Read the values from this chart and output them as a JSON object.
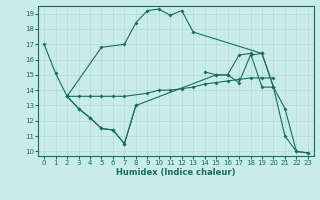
{
  "xlabel": "Humidex (Indice chaleur)",
  "bg_color": "#c8ecea",
  "grid_color": "#b8dbd8",
  "line_color": "#1a6b60",
  "xlim": [
    -0.5,
    23.5
  ],
  "ylim": [
    9.7,
    19.5
  ],
  "yticks": [
    10,
    11,
    12,
    13,
    14,
    15,
    16,
    17,
    18,
    19
  ],
  "xticks": [
    0,
    1,
    2,
    3,
    4,
    5,
    6,
    7,
    8,
    9,
    10,
    11,
    12,
    13,
    14,
    15,
    16,
    17,
    18,
    19,
    20,
    21,
    22,
    23
  ],
  "lines": [
    {
      "x": [
        2,
        5,
        7,
        8,
        9,
        10,
        11,
        12,
        13,
        19,
        20
      ],
      "y": [
        13.6,
        16.8,
        17.0,
        18.4,
        19.2,
        19.3,
        18.9,
        19.2,
        17.8,
        16.4,
        14.2
      ]
    },
    {
      "x": [
        2,
        3,
        4,
        5,
        6,
        7,
        9,
        10,
        11,
        12,
        13,
        14,
        15,
        16,
        17,
        18,
        19,
        20
      ],
      "y": [
        13.6,
        13.6,
        13.6,
        13.6,
        13.6,
        13.6,
        13.8,
        14.0,
        14.0,
        14.1,
        14.2,
        14.4,
        14.5,
        14.6,
        14.7,
        14.8,
        14.8,
        14.8
      ]
    },
    {
      "x": [
        0,
        1,
        2,
        3,
        4,
        5,
        6,
        7,
        8
      ],
      "y": [
        17.0,
        15.1,
        13.6,
        12.8,
        12.2,
        11.5,
        11.4,
        10.5,
        13.0
      ]
    },
    {
      "x": [
        2,
        3,
        4,
        5,
        6,
        7,
        8,
        15,
        16,
        17,
        18,
        19,
        20,
        21,
        22,
        23
      ],
      "y": [
        13.6,
        12.8,
        12.2,
        11.5,
        11.4,
        10.5,
        13.0,
        15.0,
        15.0,
        14.5,
        16.3,
        16.4,
        14.2,
        12.8,
        10.0,
        9.9
      ]
    },
    {
      "x": [
        14,
        15,
        16,
        17,
        18,
        19,
        20,
        21,
        22,
        23
      ],
      "y": [
        15.2,
        15.0,
        15.0,
        16.3,
        16.4,
        14.2,
        14.2,
        11.0,
        10.0,
        9.9
      ]
    }
  ]
}
